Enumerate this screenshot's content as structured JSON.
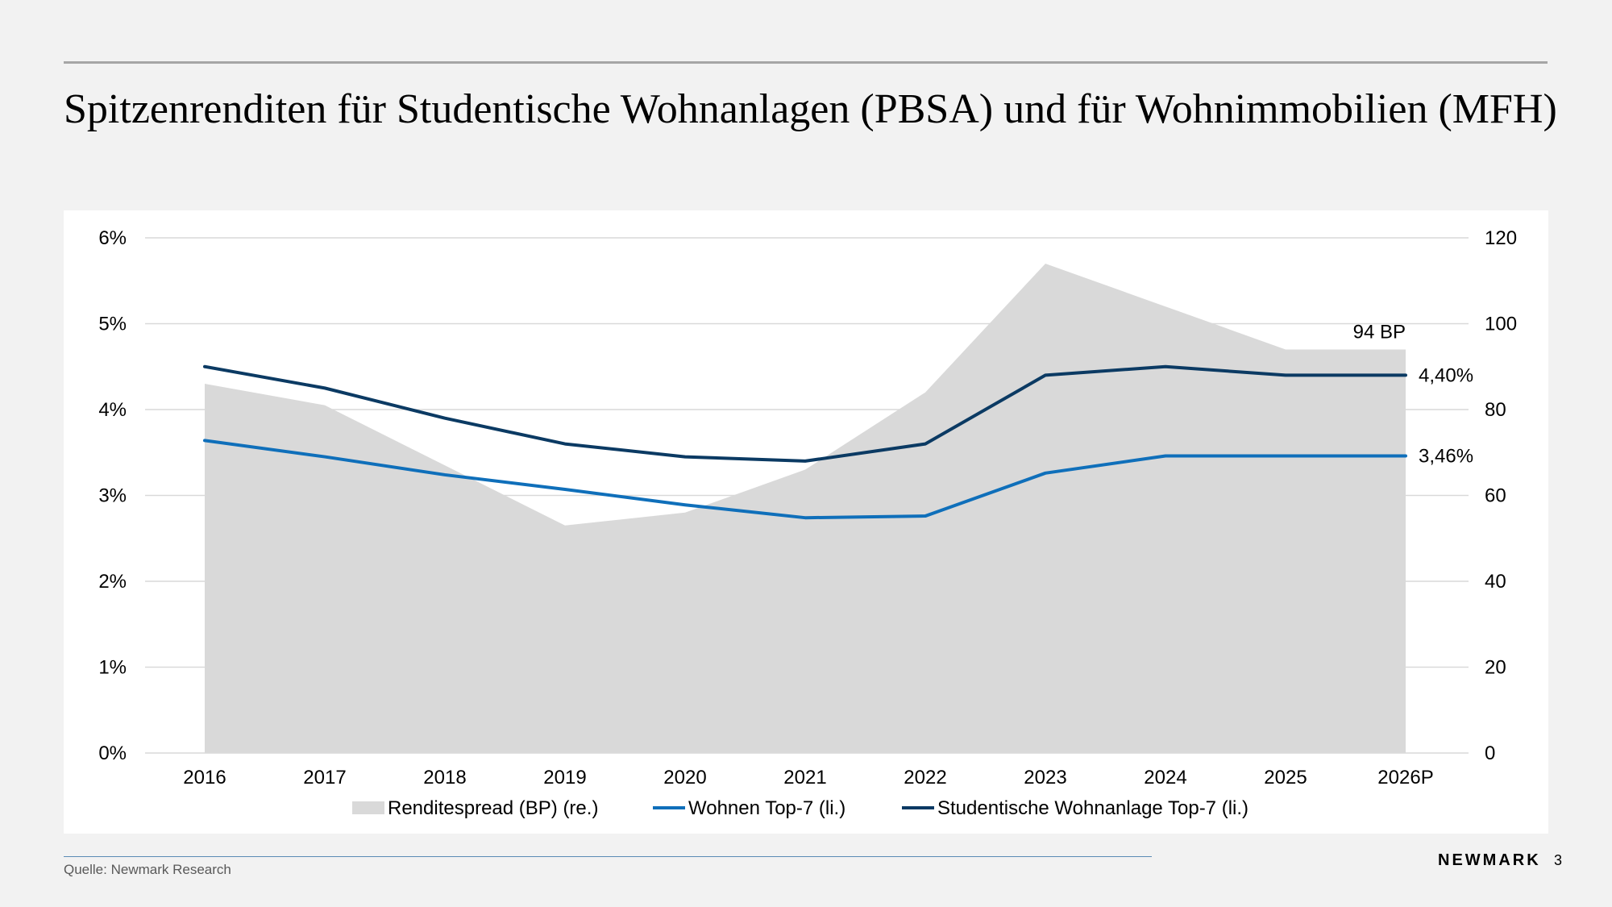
{
  "slide": {
    "title": "Spitzenrenditen für Studentische Wohnanlagen (PBSA) und für Wohnimmobilien (MFH)",
    "source": "Quelle: Newmark Research",
    "brand": "NEWMARK",
    "page_number": "3"
  },
  "chart_data": {
    "type": "line",
    "title": "",
    "xlabel": "",
    "ylabel": "",
    "categories": [
      "2016",
      "2017",
      "2018",
      "2019",
      "2020",
      "2021",
      "2022",
      "2023",
      "2024",
      "2025",
      "2026P"
    ],
    "ylim_left": [
      0,
      6
    ],
    "yticks_left": [
      "0%",
      "1%",
      "2%",
      "3%",
      "4%",
      "5%",
      "6%"
    ],
    "ylim_right": [
      0,
      120
    ],
    "yticks_right": [
      "0",
      "20",
      "40",
      "60",
      "80",
      "100",
      "120"
    ],
    "grid": true,
    "legend_position": "bottom",
    "series": [
      {
        "name": "Renditespread (BP) (re.)",
        "kind": "area",
        "axis": "right",
        "color": "#d9d9d9",
        "values": [
          86,
          81,
          67,
          53,
          56,
          66,
          84,
          114,
          104,
          94,
          94
        ]
      },
      {
        "name": "Wohnen Top-7 (li.)",
        "kind": "line",
        "axis": "left",
        "color": "#0f6fba",
        "values": [
          3.64,
          3.45,
          3.24,
          3.07,
          2.89,
          2.74,
          2.76,
          3.26,
          3.46,
          3.46,
          3.46
        ]
      },
      {
        "name": "Studentische Wohnanlage Top-7 (li.)",
        "kind": "line",
        "axis": "left",
        "color": "#0b3a63",
        "values": [
          4.5,
          4.25,
          3.9,
          3.6,
          3.45,
          3.4,
          3.6,
          4.4,
          4.5,
          4.4,
          4.4
        ]
      }
    ],
    "annotations": [
      {
        "text": "94 BP",
        "series": 0,
        "index": 10
      },
      {
        "text": "4,40%",
        "series": 2,
        "index": 10
      },
      {
        "text": "3,46%",
        "series": 1,
        "index": 10
      }
    ]
  }
}
